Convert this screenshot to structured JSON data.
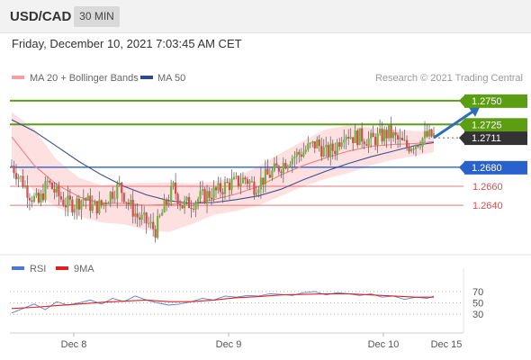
{
  "header": {
    "symbol": "USD/CAD",
    "period": "30 MIN"
  },
  "datetime": "Friday, December 10, 2021 7:03:45 AM CET",
  "legend": {
    "ma20_label": "MA 20 + Bollinger Bands",
    "ma50_label": "MA 50",
    "copyright": "Research © 2021 Trading Central",
    "rsi_label": "RSI",
    "rsi_ma_label": "9MA"
  },
  "colors": {
    "resistance": "#5c9e12",
    "support": "#2962cc",
    "lower_support": "#e34b4b",
    "current": "#333333",
    "candle_up": "#6eb53a",
    "candle_down": "#d94a4a",
    "bollinger_fill": "#ffd6d6",
    "ma20": "#f08080",
    "ma50": "#3a4f8f",
    "rsi": "#5b7fd6",
    "rsi_ma": "#e02020",
    "arrow": "#2e6db8"
  },
  "chart_data": [
    {
      "type": "candlestick",
      "title": "USD/CAD",
      "x_ticks": [
        "Dec 8",
        "Dec 9",
        "Dec 10",
        "Dec 15"
      ],
      "ylim": [
        1.259,
        1.2765
      ],
      "levels": [
        {
          "value": 1.275,
          "label": "1.2750",
          "kind": "resistance"
        },
        {
          "value": 1.2725,
          "label": "1.2725",
          "kind": "resistance"
        },
        {
          "value": 1.2711,
          "label": "1.2711",
          "kind": "current"
        },
        {
          "value": 1.268,
          "label": "1.2680",
          "kind": "support"
        },
        {
          "value": 1.266,
          "label": "1.2660",
          "kind": "lower_support"
        },
        {
          "value": 1.264,
          "label": "1.2640",
          "kind": "lower_support"
        }
      ],
      "price_path": [
        [
          0,
          1.2682
        ],
        [
          4,
          1.2668
        ],
        [
          8,
          1.2652
        ],
        [
          12,
          1.2642
        ],
        [
          16,
          1.2664
        ],
        [
          20,
          1.2652
        ],
        [
          24,
          1.2642
        ],
        [
          28,
          1.2641
        ],
        [
          32,
          1.2648
        ],
        [
          36,
          1.2638
        ],
        [
          40,
          1.264
        ],
        [
          44,
          1.2652
        ],
        [
          48,
          1.266
        ],
        [
          52,
          1.2642
        ],
        [
          56,
          1.2628
        ],
        [
          60,
          1.2622
        ],
        [
          64,
          1.2614
        ],
        [
          68,
          1.2638
        ],
        [
          72,
          1.2658
        ],
        [
          76,
          1.264
        ],
        [
          80,
          1.2643
        ],
        [
          84,
          1.2648
        ],
        [
          88,
          1.2652
        ],
        [
          92,
          1.2655
        ],
        [
          96,
          1.2662
        ],
        [
          100,
          1.2664
        ],
        [
          104,
          1.2668
        ],
        [
          108,
          1.266
        ],
        [
          112,
          1.2668
        ],
        [
          116,
          1.2674
        ],
        [
          120,
          1.2682
        ],
        [
          124,
          1.269
        ],
        [
          128,
          1.2694
        ],
        [
          132,
          1.27
        ],
        [
          136,
          1.2705
        ],
        [
          140,
          1.2695
        ],
        [
          144,
          1.27
        ],
        [
          148,
          1.2718
        ],
        [
          152,
          1.2712
        ],
        [
          156,
          1.2712
        ],
        [
          160,
          1.2708
        ],
        [
          164,
          1.2712
        ],
        [
          168,
          1.2716
        ],
        [
          172,
          1.2708
        ],
        [
          176,
          1.2702
        ],
        [
          180,
          1.2706
        ],
        [
          184,
          1.2712
        ],
        [
          188,
          1.2713
        ]
      ],
      "ma20": [
        [
          0,
          1.2712
        ],
        [
          10,
          1.2682
        ],
        [
          20,
          1.2662
        ],
        [
          30,
          1.2649
        ],
        [
          40,
          1.2642
        ],
        [
          50,
          1.2642
        ],
        [
          60,
          1.264
        ],
        [
          70,
          1.2641
        ],
        [
          80,
          1.2642
        ],
        [
          90,
          1.2646
        ],
        [
          100,
          1.2652
        ],
        [
          110,
          1.266
        ],
        [
          120,
          1.2672
        ],
        [
          130,
          1.2682
        ],
        [
          140,
          1.269
        ],
        [
          150,
          1.2697
        ],
        [
          160,
          1.2702
        ],
        [
          170,
          1.2704
        ],
        [
          180,
          1.2705
        ],
        [
          188,
          1.2707
        ]
      ],
      "bb_upper": [
        [
          0,
          1.2738
        ],
        [
          10,
          1.272
        ],
        [
          20,
          1.2688
        ],
        [
          30,
          1.2669
        ],
        [
          40,
          1.2661
        ],
        [
          50,
          1.2663
        ],
        [
          60,
          1.2664
        ],
        [
          70,
          1.2664
        ],
        [
          80,
          1.2663
        ],
        [
          90,
          1.2665
        ],
        [
          100,
          1.267
        ],
        [
          110,
          1.2681
        ],
        [
          120,
          1.2695
        ],
        [
          130,
          1.2708
        ],
        [
          140,
          1.272
        ],
        [
          150,
          1.2724
        ],
        [
          160,
          1.2722
        ],
        [
          170,
          1.272
        ],
        [
          180,
          1.2718
        ],
        [
          188,
          1.2718
        ]
      ],
      "bb_lower": [
        [
          0,
          1.2688
        ],
        [
          10,
          1.2654
        ],
        [
          20,
          1.2638
        ],
        [
          30,
          1.2628
        ],
        [
          40,
          1.2622
        ],
        [
          50,
          1.262
        ],
        [
          60,
          1.2614
        ],
        [
          70,
          1.2612
        ],
        [
          80,
          1.262
        ],
        [
          90,
          1.263
        ],
        [
          100,
          1.2634
        ],
        [
          110,
          1.264
        ],
        [
          120,
          1.265
        ],
        [
          130,
          1.266
        ],
        [
          140,
          1.2668
        ],
        [
          150,
          1.2674
        ],
        [
          160,
          1.2682
        ],
        [
          170,
          1.2688
        ],
        [
          180,
          1.2692
        ],
        [
          188,
          1.2696
        ]
      ],
      "ma50": [
        [
          0,
          1.273
        ],
        [
          10,
          1.2718
        ],
        [
          20,
          1.2702
        ],
        [
          30,
          1.2686
        ],
        [
          40,
          1.2672
        ],
        [
          50,
          1.266
        ],
        [
          60,
          1.2651
        ],
        [
          70,
          1.2645
        ],
        [
          80,
          1.2642
        ],
        [
          90,
          1.2643
        ],
        [
          100,
          1.2646
        ],
        [
          110,
          1.265
        ],
        [
          120,
          1.2657
        ],
        [
          130,
          1.2667
        ],
        [
          140,
          1.2676
        ],
        [
          150,
          1.2684
        ],
        [
          160,
          1.2691
        ],
        [
          170,
          1.2697
        ],
        [
          180,
          1.2703
        ],
        [
          188,
          1.2706
        ]
      ],
      "projection": {
        "from": [
          188,
          1.2711
        ],
        "to": [
          200,
          1.2745
        ]
      }
    },
    {
      "type": "line",
      "title": "RSI",
      "ylim": [
        0,
        100
      ],
      "y_ticks": [
        70,
        50,
        30
      ],
      "series": [
        {
          "name": "RSI",
          "values": [
            [
              0,
              32
            ],
            [
              5,
              40
            ],
            [
              10,
              48
            ],
            [
              15,
              38
            ],
            [
              20,
              52
            ],
            [
              25,
              46
            ],
            [
              30,
              50
            ],
            [
              35,
              55
            ],
            [
              40,
              48
            ],
            [
              45,
              58
            ],
            [
              50,
              52
            ],
            [
              55,
              62
            ],
            [
              60,
              55
            ],
            [
              65,
              50
            ],
            [
              70,
              46
            ],
            [
              75,
              48
            ],
            [
              80,
              52
            ],
            [
              85,
              58
            ],
            [
              90,
              55
            ],
            [
              95,
              62
            ],
            [
              100,
              60
            ],
            [
              105,
              63
            ],
            [
              110,
              62
            ],
            [
              115,
              66
            ],
            [
              120,
              65
            ],
            [
              125,
              63
            ],
            [
              130,
              68
            ],
            [
              135,
              70
            ],
            [
              140,
              64
            ],
            [
              145,
              68
            ],
            [
              150,
              66
            ],
            [
              155,
              63
            ],
            [
              160,
              66
            ],
            [
              165,
              60
            ],
            [
              170,
              62
            ],
            [
              175,
              56
            ],
            [
              180,
              60
            ],
            [
              185,
              58
            ],
            [
              188,
              62
            ]
          ]
        },
        {
          "name": "9MA",
          "values": [
            [
              0,
              40
            ],
            [
              10,
              42
            ],
            [
              20,
              45
            ],
            [
              30,
              48
            ],
            [
              40,
              51
            ],
            [
              50,
              53
            ],
            [
              60,
              55
            ],
            [
              70,
              52
            ],
            [
              80,
              52
            ],
            [
              90,
              55
            ],
            [
              100,
              59
            ],
            [
              110,
              61
            ],
            [
              120,
              64
            ],
            [
              130,
              65
            ],
            [
              140,
              66
            ],
            [
              150,
              66
            ],
            [
              160,
              64
            ],
            [
              170,
              62
            ],
            [
              180,
              60
            ],
            [
              188,
              60
            ]
          ]
        }
      ]
    }
  ]
}
